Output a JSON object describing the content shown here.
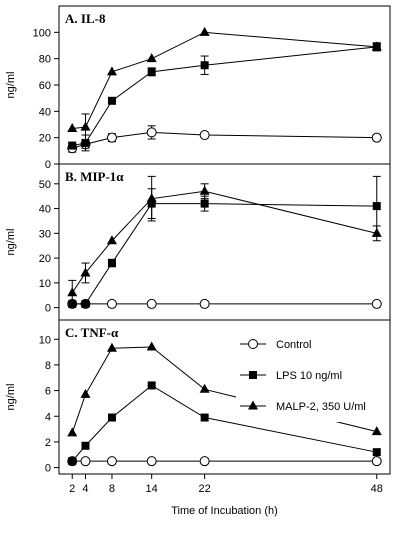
{
  "chart_data": [
    {
      "type": "line",
      "title": "A. IL-8",
      "ylabel": "ng/ml",
      "ylim": [
        0,
        120
      ],
      "yticks": [
        0,
        20,
        40,
        60,
        80,
        100
      ],
      "x": [
        2,
        4,
        8,
        14,
        22,
        48
      ],
      "series": [
        {
          "name": "Control",
          "marker": "open-circle",
          "values": [
            12,
            15,
            20,
            24,
            22,
            20
          ],
          "errors": [
            3,
            3,
            3,
            5,
            0,
            2
          ]
        },
        {
          "name": "LPS 10 ng/ml",
          "marker": "filled-square",
          "values": [
            14,
            16,
            48,
            70,
            75,
            89
          ],
          "errors": [
            2,
            6,
            2,
            3,
            7,
            3
          ]
        },
        {
          "name": "MALP-2, 350 U/ml",
          "marker": "filled-triangle",
          "values": [
            27,
            28,
            70,
            80,
            100,
            89
          ],
          "errors": [
            0,
            10,
            0,
            0,
            0,
            3
          ]
        }
      ]
    },
    {
      "type": "line",
      "title": "B. MIP-1α",
      "ylabel": "ng/ml",
      "ylim": [
        -5,
        58
      ],
      "yticks": [
        0,
        10,
        20,
        30,
        40,
        50
      ],
      "x": [
        2,
        4,
        8,
        14,
        22,
        48
      ],
      "series": [
        {
          "name": "Control",
          "marker": "open-circle",
          "values": [
            1.5,
            1.5,
            1.5,
            1.5,
            1.5,
            1.5
          ],
          "errors": [
            0,
            0,
            0,
            0,
            0,
            0
          ]
        },
        {
          "name": "LPS 10 ng/ml",
          "marker": "filled-square",
          "values": [
            1.5,
            1.5,
            18,
            42,
            42,
            41
          ],
          "errors": [
            0,
            0,
            1.5,
            6,
            3,
            12
          ]
        },
        {
          "name": "MALP-2, 350 U/ml",
          "marker": "filled-triangle",
          "values": [
            6,
            14,
            27,
            44,
            47,
            30
          ],
          "errors": [
            5,
            4,
            0,
            9,
            3,
            3
          ]
        }
      ]
    },
    {
      "type": "line",
      "title": "C. TNF-α",
      "ylabel": "ng/ml",
      "ylim": [
        -0.5,
        11.5
      ],
      "yticks": [
        0,
        2,
        4,
        6,
        8,
        10
      ],
      "xlabel": "Time of Incubation (h)",
      "xticks": [
        2,
        4,
        8,
        14,
        22,
        48
      ],
      "x": [
        2,
        4,
        8,
        14,
        22,
        48
      ],
      "legend": "top-right",
      "series": [
        {
          "name": "Control",
          "marker": "open-circle",
          "values": [
            0.5,
            0.5,
            0.5,
            0.5,
            0.5,
            0.5
          ],
          "errors": [
            0,
            0,
            0,
            0,
            0,
            0
          ]
        },
        {
          "name": "LPS 10 ng/ml",
          "marker": "filled-square",
          "values": [
            0.5,
            1.7,
            3.9,
            6.4,
            3.9,
            1.2
          ],
          "errors": [
            0,
            0,
            0,
            0,
            0,
            0
          ]
        },
        {
          "name": "MALP-2, 350 U/ml",
          "marker": "filled-triangle",
          "values": [
            2.7,
            5.7,
            9.3,
            9.4,
            6.1,
            2.8
          ],
          "errors": [
            0,
            0,
            0,
            0,
            0,
            0
          ]
        }
      ]
    }
  ]
}
